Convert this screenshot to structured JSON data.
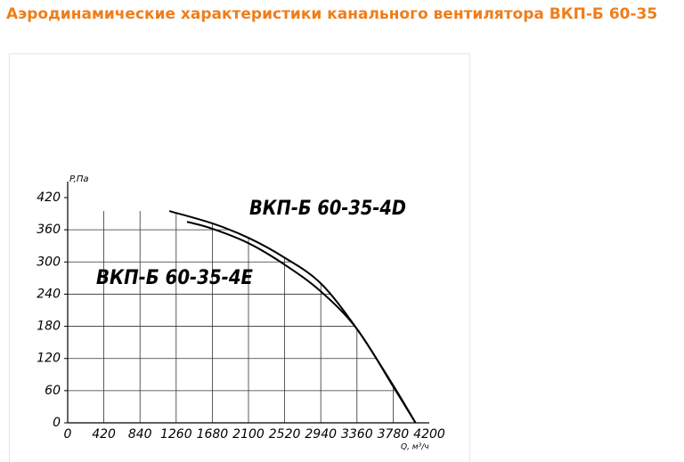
{
  "chart_data": {
    "type": "line",
    "title": "Аэродинамические характеристики канального вентилятора ВКП-Б 60-35",
    "ylabel": "P,Па",
    "xlabel": "Q, м³/ч",
    "xlim": [
      0,
      4200
    ],
    "ylim": [
      0,
      420
    ],
    "xticks": [
      0,
      420,
      840,
      1260,
      1680,
      2100,
      2520,
      2940,
      3360,
      3780,
      4200
    ],
    "yticks": [
      0,
      60,
      120,
      180,
      240,
      300,
      360,
      420
    ],
    "grid": true,
    "series": [
      {
        "name": "ВКП-Б 60-35-4D",
        "color": "#000000",
        "x": [
          1180,
          1680,
          2100,
          2520,
          2940,
          3360,
          3780,
          4040
        ],
        "values": [
          395,
          372,
          345,
          308,
          260,
          175,
          70,
          0
        ]
      },
      {
        "name": "ВКП-Б 60-35-4E",
        "color": "#000000",
        "x": [
          1386,
          1680,
          2100,
          2520,
          2940,
          3360,
          3780,
          4040
        ],
        "values": [
          375,
          362,
          335,
          295,
          245,
          175,
          68,
          0
        ]
      }
    ]
  }
}
